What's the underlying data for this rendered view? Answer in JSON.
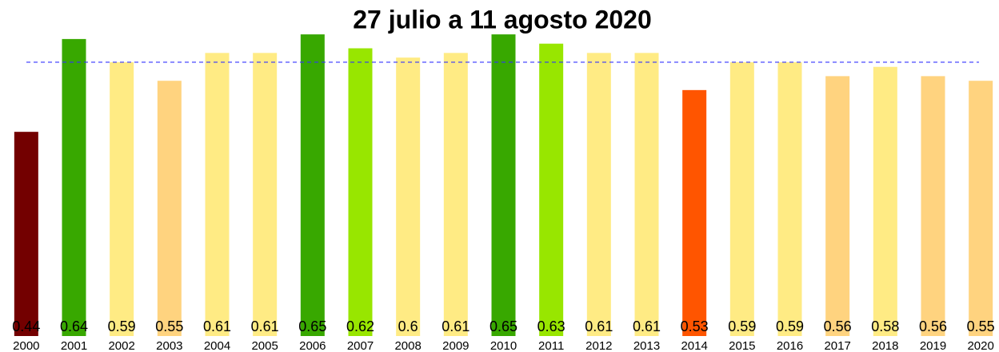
{
  "chart_data": {
    "type": "bar",
    "title": "27 julio a 11 agosto 2020",
    "categories": [
      "2000",
      "2001",
      "2002",
      "2003",
      "2004",
      "2005",
      "2006",
      "2007",
      "2008",
      "2009",
      "2010",
      "2011",
      "2012",
      "2013",
      "2014",
      "2015",
      "2016",
      "2017",
      "2018",
      "2019",
      "2020"
    ],
    "values": [
      0.44,
      0.64,
      0.59,
      0.55,
      0.61,
      0.61,
      0.65,
      0.62,
      0.6,
      0.61,
      0.65,
      0.63,
      0.61,
      0.61,
      0.53,
      0.59,
      0.59,
      0.56,
      0.58,
      0.56,
      0.55
    ],
    "colors": [
      "#730000",
      "#38a800",
      "#ffeb84",
      "#ffd37f",
      "#ffeb84",
      "#ffeb84",
      "#38a800",
      "#98e600",
      "#ffeb84",
      "#ffeb84",
      "#38a800",
      "#98e600",
      "#ffeb84",
      "#ffeb84",
      "#ff5500",
      "#ffeb84",
      "#ffeb84",
      "#ffd37f",
      "#ffeb84",
      "#ffd37f",
      "#ffd37f"
    ],
    "ylim": [
      0,
      0.7
    ],
    "reference_line": {
      "value": 0.59,
      "color": "#3333ff"
    }
  }
}
